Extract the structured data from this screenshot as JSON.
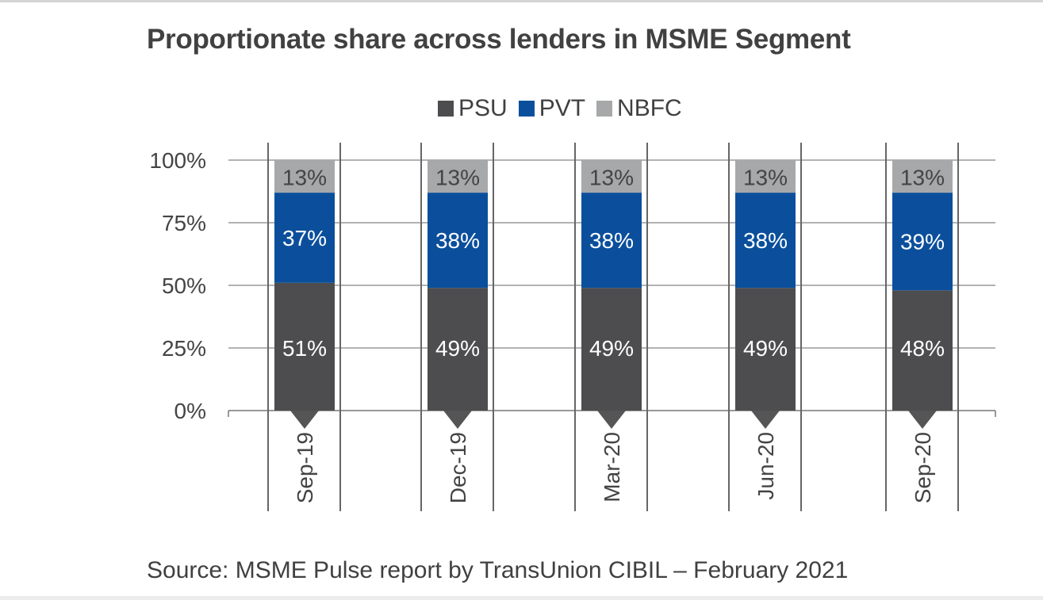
{
  "chart_data": {
    "type": "bar",
    "stacked": true,
    "title": "Proportionate share across lenders in MSME Segment",
    "categories": [
      "Sep-19",
      "Dec-19",
      "Mar-20",
      "Jun-20",
      "Sep-20"
    ],
    "series": [
      {
        "name": "PSU",
        "color": "#4d4d4f",
        "values": [
          51,
          49,
          49,
          49,
          48
        ],
        "labels": [
          "51%",
          "49%",
          "49%",
          "49%",
          "48%"
        ]
      },
      {
        "name": "PVT",
        "color": "#0b4f9c",
        "values": [
          37,
          38,
          38,
          38,
          39
        ],
        "labels": [
          "37%",
          "38%",
          "38%",
          "38%",
          "39%"
        ]
      },
      {
        "name": "NBFC",
        "color": "#a7a8aa",
        "values": [
          13,
          13,
          13,
          13,
          13
        ],
        "labels": [
          "13%",
          "13%",
          "13%",
          "13%",
          "13%"
        ]
      }
    ],
    "ylim": [
      0,
      100
    ],
    "yticks": [
      "0%",
      "25%",
      "50%",
      "75%",
      "100%"
    ],
    "grid": true,
    "legend": "top",
    "source": "Source: MSME Pulse report by TransUnion CIBIL – February 2021"
  }
}
